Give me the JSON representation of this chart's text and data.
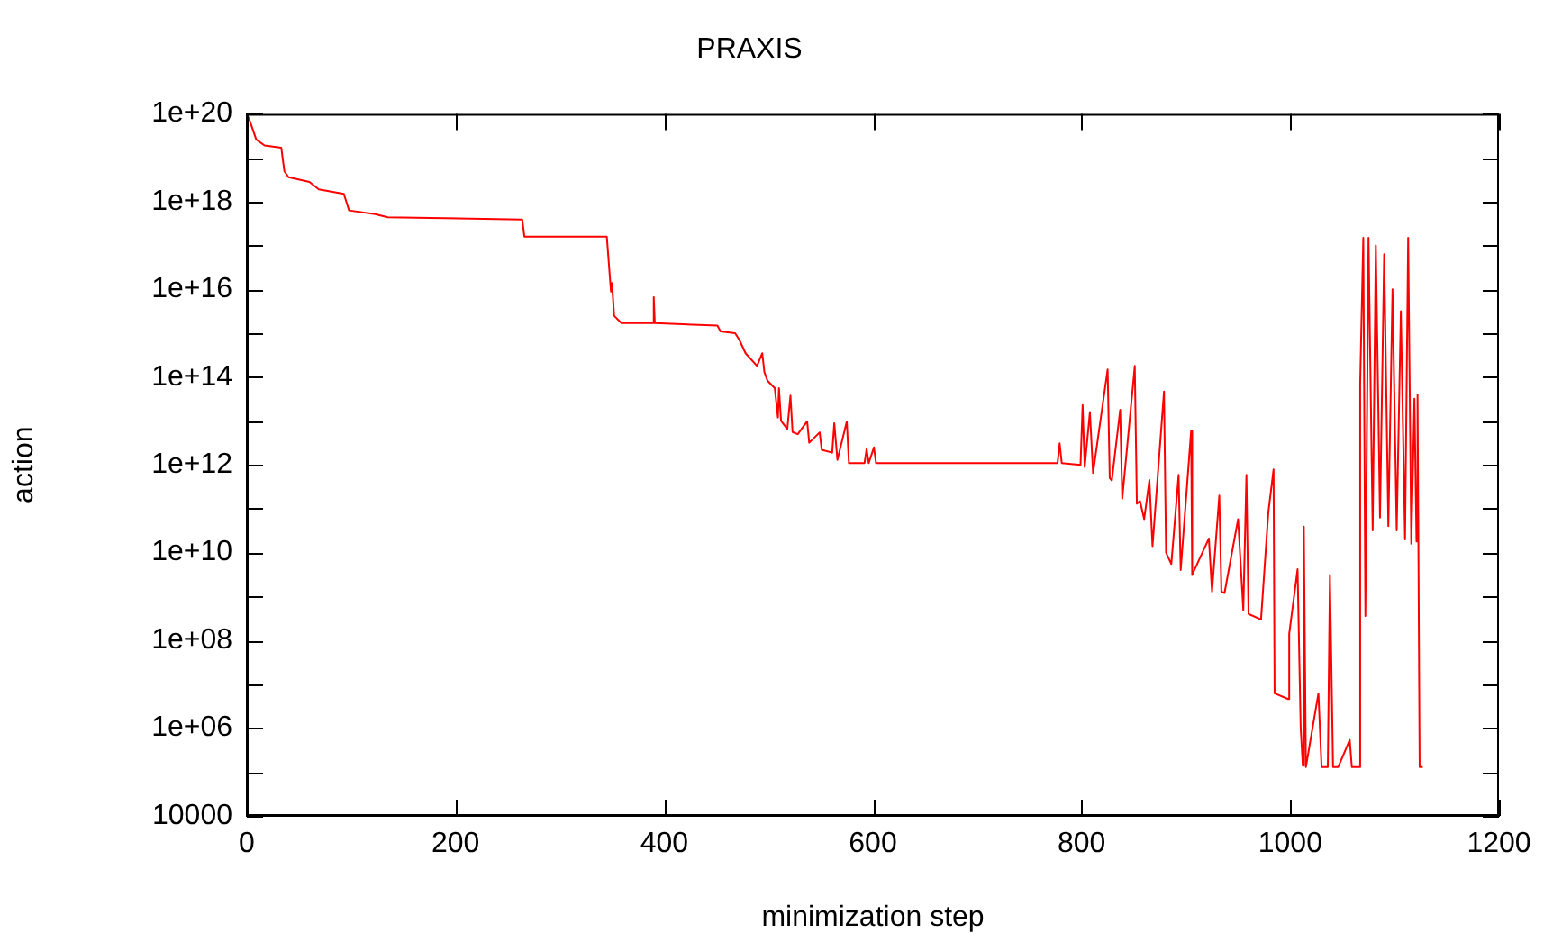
{
  "chart_data": {
    "type": "line",
    "title": "PRAXIS",
    "xlabel": "minimization step",
    "ylabel": "action",
    "x": [
      0,
      3,
      9,
      17,
      33,
      36,
      40,
      60,
      69,
      93,
      98,
      123,
      135,
      264,
      266,
      345,
      349,
      350,
      352,
      359,
      389,
      390,
      391,
      451,
      454,
      468,
      472,
      478,
      489,
      494,
      496,
      499,
      506,
      509,
      510,
      512,
      518,
      521,
      523,
      528,
      537,
      539,
      549,
      551,
      561,
      563,
      566,
      575,
      577,
      592,
      594,
      596,
      601,
      603,
      777,
      779,
      781,
      799,
      801,
      803,
      808,
      811,
      825,
      827,
      829,
      837,
      839,
      851,
      853,
      856,
      860,
      865,
      868,
      879,
      881,
      886,
      893,
      895,
      905,
      906,
      922,
      925,
      932,
      934,
      937,
      950,
      955,
      958,
      960,
      972,
      979,
      984,
      985,
      998,
      999,
      1007,
      1010,
      1012,
      1013,
      1015,
      1027,
      1030,
      1036,
      1038,
      1041,
      1046,
      1057,
      1059,
      1066,
      1067,
      1070,
      1072,
      1075,
      1079,
      1082,
      1086,
      1090,
      1094,
      1098,
      1102,
      1106,
      1110,
      1113,
      1116,
      1119,
      1121,
      1122,
      1124,
      1127
    ],
    "series": [
      {
        "color": "#ff0000",
        "values": [
          1e+20,
          6.8e+19,
          2.6e+19,
          1.9e+19,
          1.7e+19,
          4.9e+18,
          3.6e+18,
          2.8e+18,
          1.9e+18,
          1.5e+18,
          6.3e+17,
          5.2e+17,
          4.4e+17,
          3.9e+17,
          1.6e+17,
          1.6e+17,
          8900000000000000.0,
          1.4e+16,
          2500000000000000.0,
          1700000000000000.0,
          1700000000000000.0,
          6600000000000000.0,
          1700000000000000.0,
          1500000000000000.0,
          1100000000000000.0,
          1000000000000000.0,
          710000000000000.0,
          350000000000000.0,
          180000000000000.0,
          350000000000000.0,
          130000000000000.0,
          83000000000000.0,
          56000000000000.0,
          12000000000000.0,
          56000000000000.0,
          10000000000000.0,
          6600000000000.0,
          38000000000000.0,
          5600000000000.0,
          5000000000000.0,
          9800000000000.0,
          3200000000000.0,
          5500000000000.0,
          2200000000000.0,
          1900000000000.0,
          8900000000000.0,
          1300000000000.0,
          9800000000000.0,
          1100000000000.0,
          1100000000000.0,
          2300000000000.0,
          1100000000000.0,
          2500000000000.0,
          1100000000000.0,
          1100000000000.0,
          3100000000000.0,
          1100000000000.0,
          1000000000000.0,
          23000000000000.0,
          890000000000.0,
          16000000000000.0,
          650000000000.0,
          150000000000000.0,
          500000000000.0,
          440000000000.0,
          18000000000000.0,
          170000000000.0,
          180000000000000.0,
          130000000000.0,
          150000000000.0,
          58000000000.0,
          450000000000.0,
          14000000000.0,
          47000000000000.0,
          10000000000.0,
          5500000000.0,
          590000000000.0,
          4000000000.0,
          6000000000000.0,
          3100000000.0,
          21000000000.0,
          1300000000.0,
          200000000000.0,
          1300000000.0,
          1200000000.0,
          58000000000.0,
          490000000.0,
          590000000000.0,
          400000000.0,
          300000000.0,
          83000000000.0,
          790000000000.0,
          6200000.0,
          4600000.0,
          140000000.0,
          4200000000.0,
          1000000.0,
          140000.0,
          39000000000.0,
          130000.0,
          6200000.0,
          130000.0,
          130000.0,
          3100000000.0,
          130000.0,
          130000.0,
          540000.0,
          130000.0,
          130000.0,
          69000000000000.0,
          1.5e+17,
          360000000.0,
          1.5e+17,
          32000000000.0,
          1e+17,
          63000000000.0,
          6.3e+16,
          40000000000.0,
          1e+16,
          32000000000.0,
          3200000000000000.0,
          20000000000.0,
          1.5e+17,
          16000000000.0,
          32000000000000.0,
          18000000000.0,
          40000000000000.0,
          130000.0,
          130000.0
        ]
      }
    ],
    "xlim": [
      0,
      1200
    ],
    "xticks": [
      0,
      200,
      400,
      600,
      800,
      1000,
      1200
    ],
    "ylim": [
      10000,
      1e+20
    ],
    "yticks": [
      10000,
      {
        "value": 100000.0,
        "label": null
      },
      {
        "value": 1000000.0,
        "label": "1e+06"
      },
      {
        "value": 10000000.0,
        "label": null
      },
      {
        "value": 100000000.0,
        "label": "1e+08"
      },
      {
        "value": 1000000000.0,
        "label": null
      },
      {
        "value": 10000000000.0,
        "label": "1e+10"
      },
      {
        "value": 100000000000.0,
        "label": null
      },
      {
        "value": 1000000000000.0,
        "label": "1e+12"
      },
      {
        "value": 10000000000000.0,
        "label": null
      },
      {
        "value": 100000000000000.0,
        "label": "1e+14"
      },
      {
        "value": 1000000000000000.0,
        "label": null
      },
      {
        "value": 1e+16,
        "label": "1e+16"
      },
      {
        "value": 1e+17,
        "label": null
      },
      {
        "value": 1e+18,
        "label": "1e+18"
      },
      {
        "value": 1e+19,
        "label": null
      },
      {
        "value": 1e+20,
        "label": "1e+20"
      }
    ],
    "log": "y",
    "grid": false,
    "legend": false,
    "marker": "none",
    "line_style": "solid"
  }
}
